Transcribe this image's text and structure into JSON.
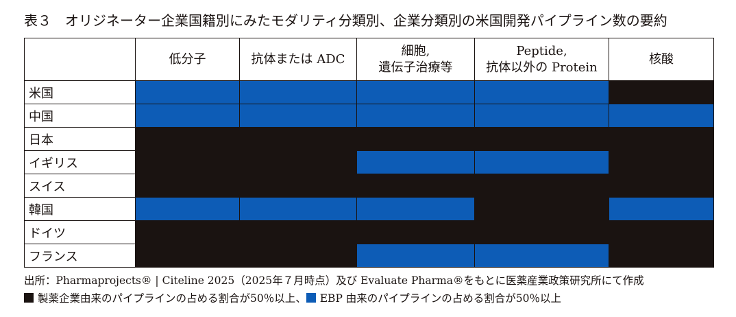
{
  "title": "表３　オリジネーター企業国籍別にみたモダリティ分類別、企業分類別の米国開発パイプライン数の要約",
  "table": {
    "columns": [
      "低分子",
      "抗体または ADC",
      "細胞,\n遺伝子治療等",
      "Peptide,\n抗体以外の Protein",
      "核酸"
    ],
    "rows": [
      {
        "label": "米国",
        "cells": [
          "#0d5cb6",
          "#0d5cb6",
          "#0d5cb6",
          "#0d5cb6",
          "#1a1311"
        ]
      },
      {
        "label": "中国",
        "cells": [
          "#0d5cb6",
          "#0d5cb6",
          "#0d5cb6",
          "#0d5cb6",
          "#0d5cb6"
        ]
      },
      {
        "label": "日本",
        "cells": [
          "#1a1311",
          "#1a1311",
          "#1a1311",
          "#1a1311",
          "#1a1311"
        ]
      },
      {
        "label": "イギリス",
        "cells": [
          "#1a1311",
          "#1a1311",
          "#0d5cb6",
          "#0d5cb6",
          "#1a1311"
        ]
      },
      {
        "label": "スイス",
        "cells": [
          "#1a1311",
          "#1a1311",
          "#1a1311",
          "#1a1311",
          "#1a1311"
        ]
      },
      {
        "label": "韓国",
        "cells": [
          "#0d5cb6",
          "#0d5cb6",
          "#0d5cb6",
          "#1a1311",
          "#0d5cb6"
        ]
      },
      {
        "label": "ドイツ",
        "cells": [
          "#1a1311",
          "#1a1311",
          "#1a1311",
          "#1a1311",
          "#1a1311"
        ]
      },
      {
        "label": "フランス",
        "cells": [
          "#1a1311",
          "#1a1311",
          "#0d5cb6",
          "#0d5cb6",
          "#1a1311"
        ]
      }
    ]
  },
  "source": "出所：Pharmaprojects® | Citeline 2025（2025年７月時点）及び Evaluate Pharma®をもとに医薬産業政策研究所にて作成",
  "legend": [
    {
      "color": "#1a1311",
      "label": "製薬企業由来のパイプラインの占める割合が50％以上、"
    },
    {
      "color": "#0d5cb6",
      "label": "EBP 由来のパイプラインの占める割合が50％以上"
    }
  ]
}
